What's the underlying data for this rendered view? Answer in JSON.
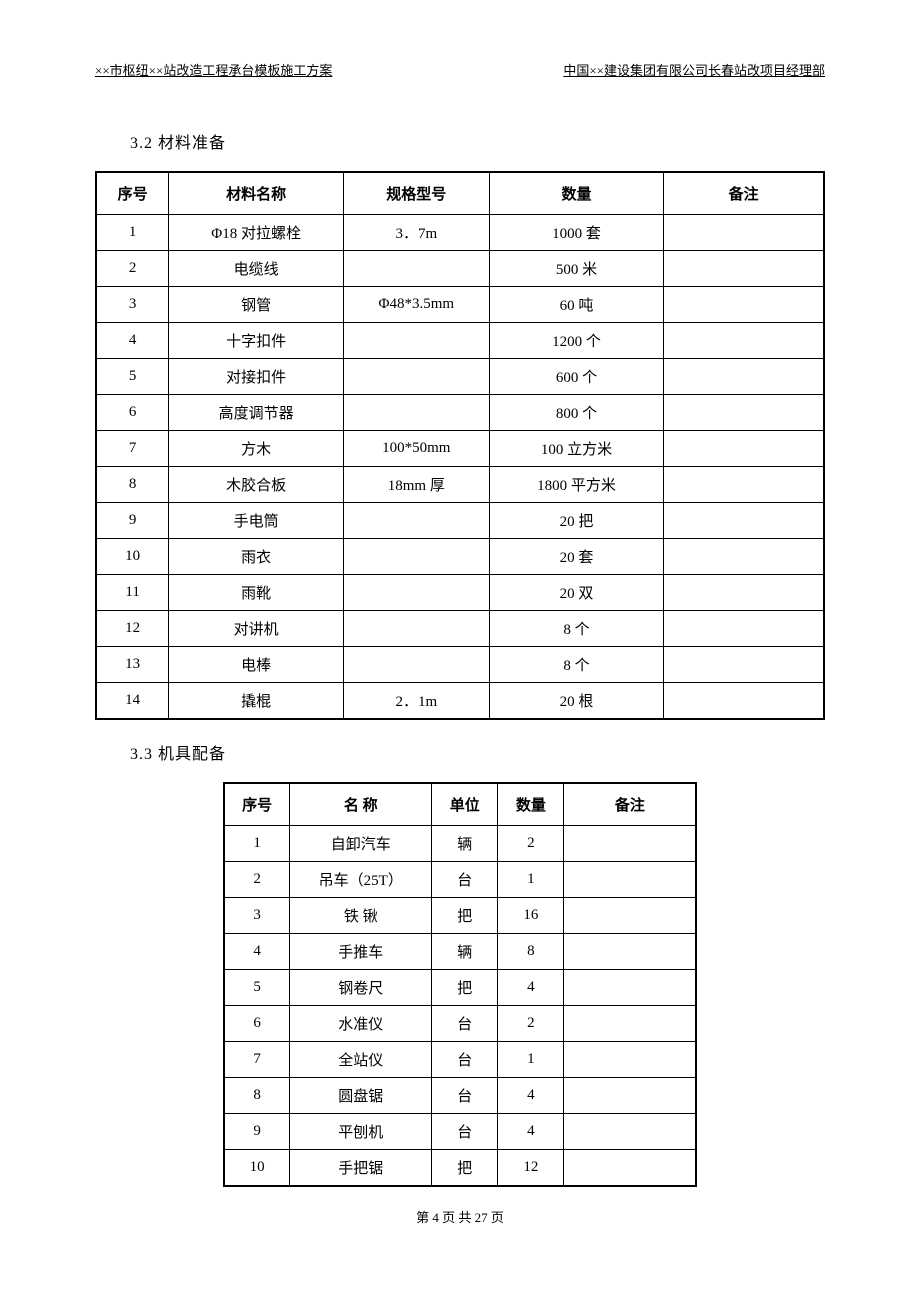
{
  "header": {
    "left": "××市枢纽××站改造工程承台模板施工方案",
    "right": "中国××建设集团有限公司长春站改项目经理部"
  },
  "section1": {
    "title": "3.2 材料准备",
    "columns": [
      "序号",
      "材料名称",
      "规格型号",
      "数量",
      "备注"
    ],
    "rows": [
      [
        "1",
        "Φ18 对拉螺栓",
        "3．7m",
        "1000 套",
        ""
      ],
      [
        "2",
        "电缆线",
        "",
        "500 米",
        ""
      ],
      [
        "3",
        "钢管",
        "Φ48*3.5mm",
        "60 吨",
        ""
      ],
      [
        "4",
        "十字扣件",
        "",
        "1200 个",
        ""
      ],
      [
        "5",
        "对接扣件",
        "",
        "600 个",
        ""
      ],
      [
        "6",
        "高度调节器",
        "",
        "800 个",
        ""
      ],
      [
        "7",
        "方木",
        "100*50mm",
        "100 立方米",
        ""
      ],
      [
        "8",
        "木胶合板",
        "18mm 厚",
        "1800 平方米",
        ""
      ],
      [
        "9",
        "手电筒",
        "",
        "20 把",
        ""
      ],
      [
        "10",
        "雨衣",
        "",
        "20 套",
        ""
      ],
      [
        "11",
        "雨靴",
        "",
        "20 双",
        ""
      ],
      [
        "12",
        "对讲机",
        "",
        "8 个",
        ""
      ],
      [
        "13",
        "电棒",
        "",
        "8 个",
        ""
      ],
      [
        "14",
        "撬棍",
        "2．1m",
        "20 根",
        ""
      ]
    ]
  },
  "section2": {
    "title": "3.3 机具配备",
    "columns": [
      "序号",
      "名 称",
      "单位",
      "数量",
      "备注"
    ],
    "rows": [
      [
        "1",
        "自卸汽车",
        "辆",
        "2",
        ""
      ],
      [
        "2",
        "吊车（25T）",
        "台",
        "1",
        ""
      ],
      [
        "3",
        "铁 锹",
        "把",
        "16",
        ""
      ],
      [
        "4",
        "手推车",
        "辆",
        "8",
        ""
      ],
      [
        "5",
        "钢卷尺",
        "把",
        "4",
        ""
      ],
      [
        "6",
        "水准仪",
        "台",
        "2",
        ""
      ],
      [
        "7",
        "全站仪",
        "台",
        "1",
        ""
      ],
      [
        "8",
        "圆盘锯",
        "台",
        "4",
        ""
      ],
      [
        "9",
        "平刨机",
        "台",
        "4",
        ""
      ],
      [
        "10",
        "手把锯",
        "把",
        "12",
        ""
      ]
    ]
  },
  "footer": "第 4 页 共 27 页"
}
